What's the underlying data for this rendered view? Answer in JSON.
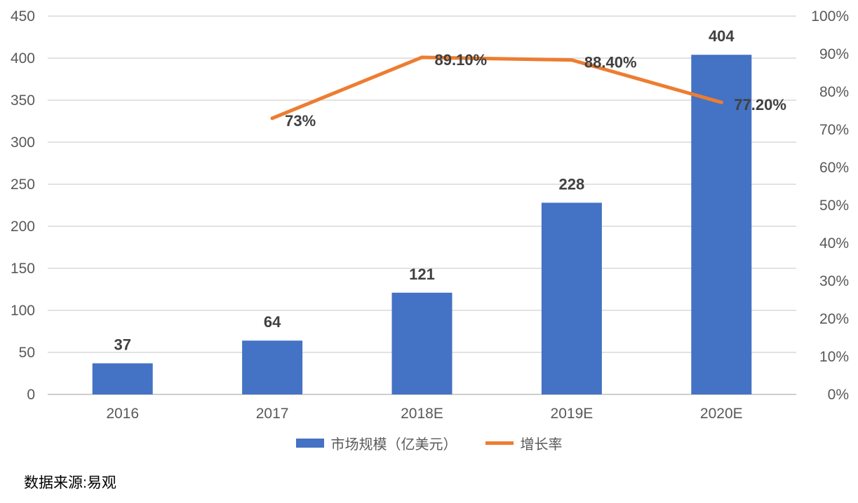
{
  "chart_data": {
    "type": "bar",
    "categories": [
      "2016",
      "2017",
      "2018E",
      "2019E",
      "2020E"
    ],
    "series": [
      {
        "name": "市场规模（亿美元）",
        "type": "bar",
        "axis": "left",
        "values": [
          37,
          64,
          121,
          228,
          404
        ],
        "labels": [
          "37",
          "64",
          "121",
          "228",
          "404"
        ],
        "color": "#4472C4"
      },
      {
        "name": "增长率",
        "type": "line",
        "axis": "right",
        "values": [
          null,
          73,
          89.1,
          88.4,
          77.2
        ],
        "labels": [
          "",
          "73%",
          "89.10%",
          "88.40%",
          "77.20%"
        ],
        "color": "#ED7D31"
      }
    ],
    "ylim_left": [
      0,
      450
    ],
    "yticks_left": [
      "0",
      "50",
      "100",
      "150",
      "200",
      "250",
      "300",
      "350",
      "400",
      "450"
    ],
    "ylim_right": [
      0,
      100
    ],
    "yticks_right": [
      "0%",
      "10%",
      "20%",
      "30%",
      "40%",
      "50%",
      "60%",
      "70%",
      "80%",
      "90%",
      "100%"
    ],
    "grid": true,
    "legend_position": "bottom"
  },
  "legend": {
    "bar_label": "市场规模（亿美元）",
    "line_label": "增长率"
  },
  "source": "数据来源:易观"
}
